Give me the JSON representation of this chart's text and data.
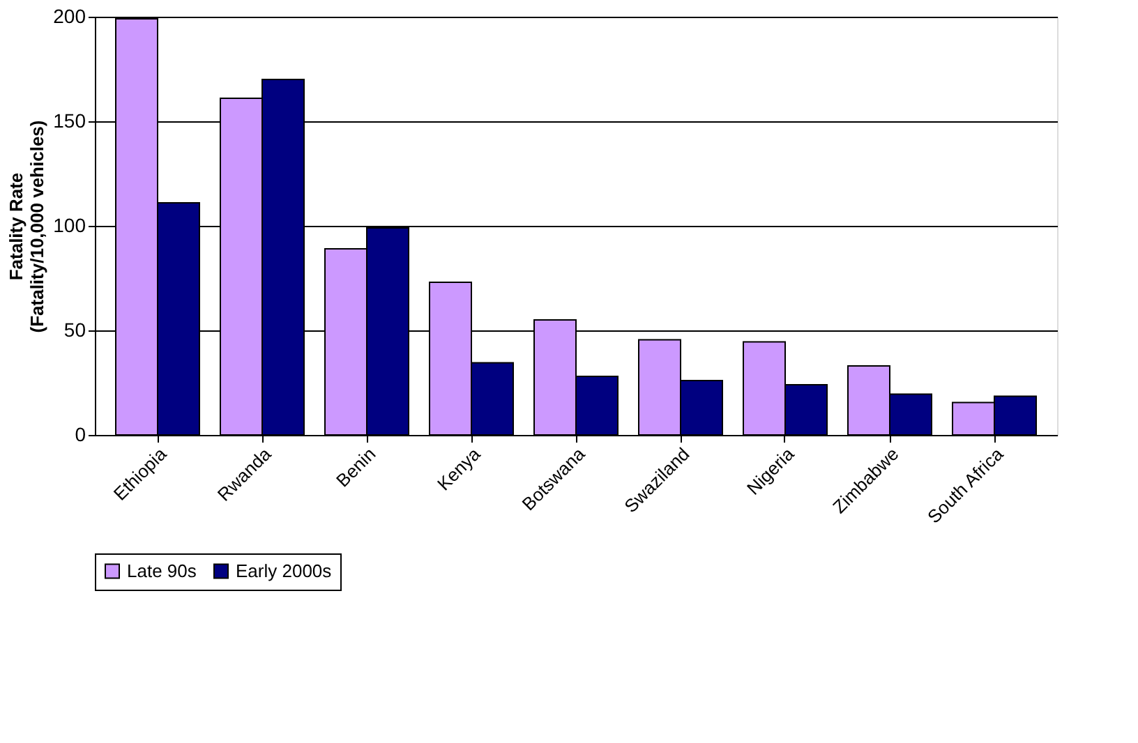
{
  "chart_data": {
    "type": "bar",
    "ylabel": "Fatality Rate\n(Fatality/10,000 vehicles)",
    "categories": [
      "Ethiopia",
      "Rwanda",
      "Benin",
      "Kenya",
      "Botswana",
      "Swaziland",
      "Nigeria",
      "Zimbabwe",
      "South Africa"
    ],
    "series": [
      {
        "name": "Late 90s",
        "color": "#cc99ff",
        "values": [
          199,
          161,
          89,
          73,
          55,
          45.5,
          44.5,
          33,
          15.5
        ]
      },
      {
        "name": "Early 2000s",
        "color": "#000080",
        "values": [
          111,
          170,
          99,
          34.5,
          28,
          26,
          24,
          19.5,
          18.5
        ]
      }
    ],
    "ylim": [
      0,
      200
    ],
    "yticks": [
      0,
      50,
      100,
      150,
      200
    ],
    "grid": "y",
    "legend": "bottom"
  }
}
